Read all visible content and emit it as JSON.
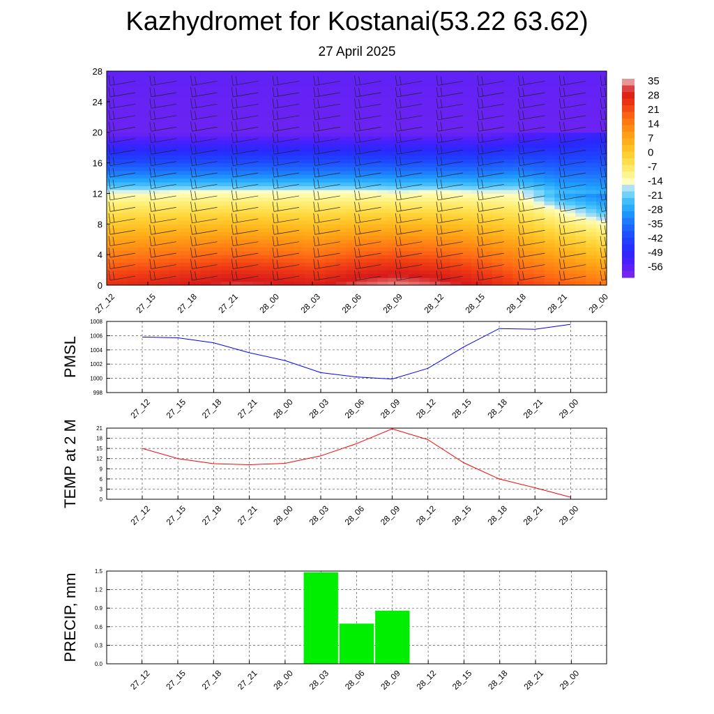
{
  "header": {
    "title": "Kazhydromet for Kostanai(53.22 63.62)",
    "subtitle": "27 April 2025"
  },
  "chart_data": [
    {
      "type": "heatmap",
      "name": "vertical-section",
      "x_ticks": [
        "27_12",
        "27_15",
        "27_18",
        "27_21",
        "28_00",
        "28_03",
        "28_06",
        "28_09",
        "28_12",
        "28_15",
        "28_18",
        "28_21",
        "29_00"
      ],
      "ylim": [
        0,
        28
      ],
      "y_ticks": [
        "0",
        "4",
        "8",
        "12",
        "16",
        "20",
        "24",
        "28"
      ],
      "colorbar_labels": [
        "35",
        "28",
        "21",
        "14",
        "7",
        "0",
        "-7",
        "-14",
        "-21",
        "-28",
        "-35",
        "-42",
        "-49",
        "-56"
      ],
      "colorbar_range": [
        -63,
        42
      ],
      "freezing_level": [
        12.2,
        12.2,
        12.3,
        12.3,
        12.3,
        12.3,
        12.3,
        12.2,
        12.3,
        12.2,
        12.0,
        10.0,
        8.5
      ],
      "surface_temp": [
        31,
        33,
        35,
        37,
        36,
        34,
        38,
        40,
        38,
        34,
        28,
        24,
        20
      ],
      "top_temp": [
        -60,
        -60,
        -60,
        -60,
        -60,
        -60,
        -60,
        -60,
        -60,
        -60,
        -60,
        -60,
        -60
      ]
    },
    {
      "type": "line",
      "name": "PMSL",
      "ylabel": "PMSL",
      "categories": [
        "27_12",
        "27_15",
        "27_18",
        "27_21",
        "28_00",
        "28_03",
        "28_06",
        "28_09",
        "28_12",
        "28_15",
        "28_18",
        "28_21",
        "29_00"
      ],
      "values": [
        1005.8,
        1005.7,
        1005.0,
        1003.6,
        1002.5,
        1000.8,
        1000.2,
        999.9,
        1001.4,
        1004.4,
        1007.0,
        1006.9,
        1007.6
      ],
      "ylim": [
        998,
        1008
      ],
      "y_ticks": [
        "998",
        "1000",
        "1002",
        "1004",
        "1006",
        "1008"
      ],
      "color": "#0000ff",
      "grid": true
    },
    {
      "type": "line",
      "name": "TEMP at 2 M",
      "ylabel": "TEMP at 2 M",
      "categories": [
        "27_12",
        "27_15",
        "27_18",
        "27_21",
        "28_00",
        "28_03",
        "28_06",
        "28_09",
        "28_12",
        "28_15",
        "28_18",
        "28_21",
        "29_00"
      ],
      "values": [
        15,
        12,
        10.5,
        10.2,
        10.6,
        12.8,
        16.4,
        20.8,
        17.6,
        10.8,
        6,
        3.4,
        0.6
      ],
      "ylim": [
        0,
        21
      ],
      "y_ticks": [
        "0",
        "3",
        "6",
        "9",
        "12",
        "15",
        "18",
        "21"
      ],
      "color": "#ff0000",
      "grid": true
    },
    {
      "type": "bar",
      "name": "PRECIP, mm",
      "ylabel": "PRECIP, mm",
      "categories": [
        "27_12",
        "27_15",
        "27_18",
        "27_21",
        "28_00",
        "28_03",
        "28_06",
        "28_09",
        "28_12",
        "28_15",
        "28_18",
        "28_21",
        "29_00"
      ],
      "values": [
        0,
        0,
        0,
        0,
        0,
        1.48,
        0.65,
        0.86,
        0,
        0,
        0,
        0,
        0
      ],
      "ylim": [
        0,
        1.5
      ],
      "y_ticks": [
        "0.0",
        "0.3",
        "0.6",
        "0.9",
        "1.2",
        "1.5"
      ],
      "color": "#00ee00",
      "grid": true
    }
  ]
}
